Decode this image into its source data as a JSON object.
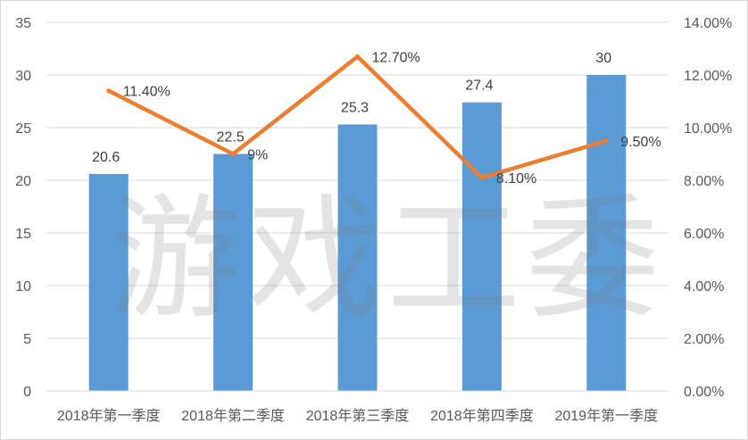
{
  "watermark": "游戏工委",
  "chart_data": {
    "type": "bar",
    "title": "",
    "categories": [
      "2018年第一季度",
      "2018年第二季度",
      "2018年第三季度",
      "2018年第四季度",
      "2019年第一季度"
    ],
    "series": [
      {
        "type": "bar",
        "axis": "left",
        "values": [
          20.6,
          22.5,
          25.3,
          27.4,
          30
        ],
        "labels": [
          "20.6",
          "22.5",
          "25.3",
          "27.4",
          "30"
        ],
        "color": "#5B9BD5"
      },
      {
        "type": "line",
        "axis": "right",
        "values": [
          11.4,
          9,
          12.7,
          8.1,
          9.5
        ],
        "labels": [
          "11.40%",
          "9%",
          "12.70%",
          "8.10%",
          "9.50%"
        ],
        "color": "#ED7D31"
      }
    ],
    "y_left": {
      "min": 0,
      "max": 35,
      "step": 5,
      "tick_labels": [
        "0",
        "5",
        "10",
        "15",
        "20",
        "25",
        "30",
        "35"
      ]
    },
    "y_right": {
      "min": 0,
      "max": 14,
      "step": 2,
      "tick_labels": [
        "0.00%",
        "2.00%",
        "4.00%",
        "6.00%",
        "8.00%",
        "10.00%",
        "12.00%",
        "14.00%"
      ]
    },
    "grid": true,
    "legend": "none"
  }
}
